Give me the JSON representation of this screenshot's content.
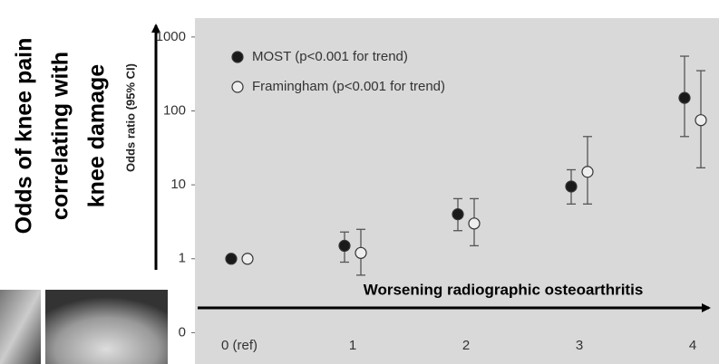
{
  "chart_data": {
    "type": "errorbar",
    "ylabel": "Odds ratio (95% CI)",
    "y_annotation": [
      "Odds of knee pain",
      "correlating with",
      "knee damage"
    ],
    "x_annotation": "Worsening radiographic osteoarthritis",
    "categories": [
      "0 (ref)",
      "1",
      "2",
      "3",
      "4"
    ],
    "yscale": "log",
    "ylim": [
      0.05,
      1800
    ],
    "yticks": [
      {
        "value": 0.1,
        "label": "0"
      },
      1,
      10,
      100,
      1000
    ],
    "legend": "upper left",
    "background": "#d9d9d9",
    "series": [
      {
        "name": "MOST (p<0.001 for trend)",
        "color": "#1a1a1a",
        "values": [
          1,
          1.5,
          4,
          9.5,
          150
        ],
        "lower": [
          null,
          0.9,
          2.4,
          5.5,
          45
        ],
        "upper": [
          null,
          2.3,
          6.5,
          16,
          550
        ]
      },
      {
        "name": "Framingham (p<0.001 for trend)",
        "color": "#eeeeee",
        "values": [
          1,
          1.2,
          3,
          15,
          75
        ],
        "lower": [
          null,
          0.6,
          1.5,
          5.5,
          17
        ],
        "upper": [
          null,
          2.5,
          6.5,
          45,
          350
        ]
      }
    ]
  }
}
